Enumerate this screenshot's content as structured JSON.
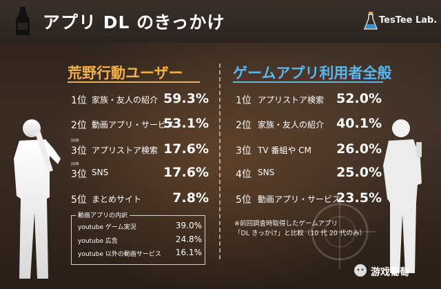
{
  "header": {
    "title": "アプリ DL のきっかけ",
    "brand": "TesTee Lab."
  },
  "chart_data": [
    {
      "type": "table",
      "title": "荒野行動ユーザー",
      "rows": [
        {
          "rank": "1位",
          "label": "家族・友人の紹介",
          "value": "59.3%"
        },
        {
          "rank": "2位",
          "label": "動画アプリ・サービス",
          "value": "53.1%"
        },
        {
          "rank": "3位",
          "tie": "同率",
          "label": "アプリストア検索",
          "value": "17.6%"
        },
        {
          "rank": "3位",
          "tie": "同率",
          "label": "SNS",
          "value": "17.6%"
        },
        {
          "rank": "5位",
          "label": "まとめサイト",
          "value": "7.8%"
        }
      ],
      "breakdown": {
        "title": "動画アプリの内訳",
        "rows": [
          {
            "label": "youtube ゲーム実況",
            "value": "39.0%"
          },
          {
            "label": "youtube 広告",
            "value": "24.8%"
          },
          {
            "label": "youtube 以外の動画サービス",
            "value": "16.1%"
          }
        ]
      }
    },
    {
      "type": "table",
      "title": "ゲームアプリ利用者全般",
      "rows": [
        {
          "rank": "1位",
          "label": "アプリストア検索",
          "value": "52.0%"
        },
        {
          "rank": "2位",
          "label": "家族・友人の紹介",
          "value": "40.1%"
        },
        {
          "rank": "3位",
          "label": "TV 番組や CM",
          "value": "26.0%"
        },
        {
          "rank": "4位",
          "label": "SNS",
          "value": "25.0%"
        },
        {
          "rank": "5位",
          "label": "動画アプリ・サービス",
          "value": "23.5%"
        }
      ],
      "note": [
        "※前回調査時取得したゲームアプリ",
        "「DL きっかけ」と比較（10 代 20 代のみ）"
      ]
    }
  ],
  "watermark": "游戏葡萄",
  "colors": {
    "left_accent": "#f2b14a",
    "right_accent": "#59b8ef"
  }
}
